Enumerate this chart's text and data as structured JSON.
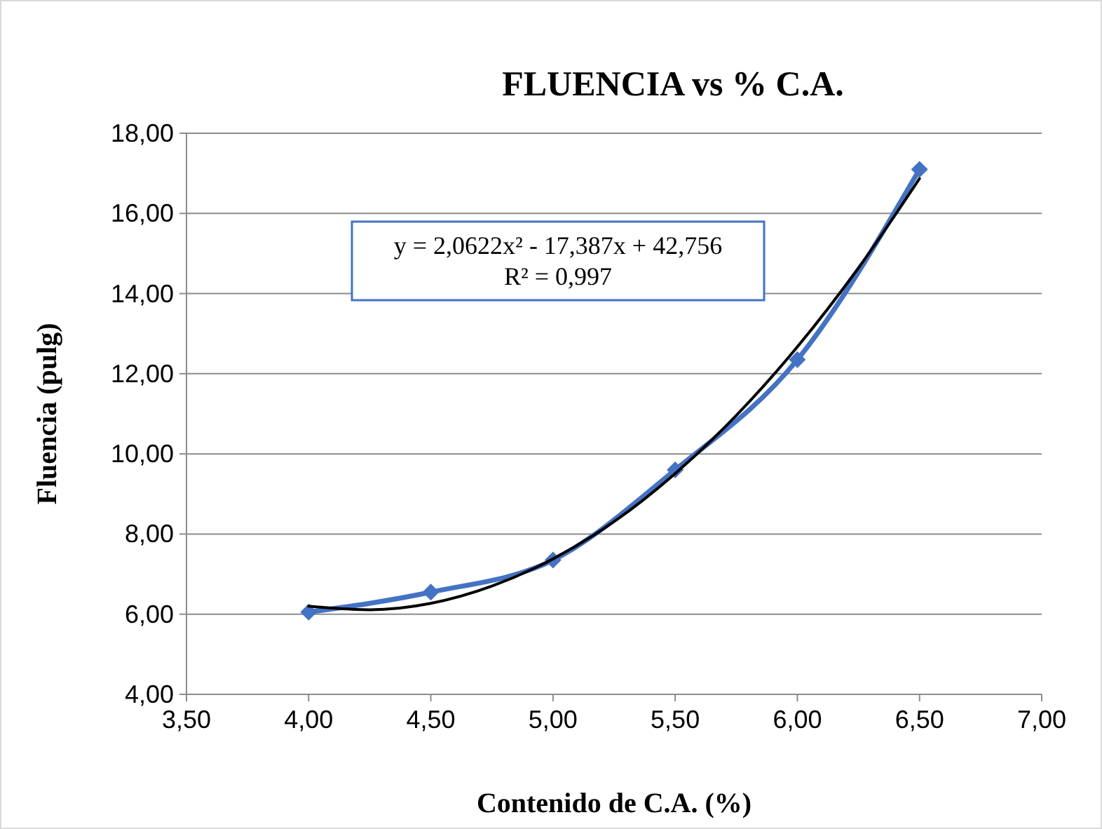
{
  "chart_data": {
    "type": "line",
    "title": "FLUENCIA vs % C.A.",
    "xlabel": "Contenido de C.A. (%)",
    "ylabel": "Fluencia (pulg)",
    "x": [
      4,
      4.5,
      5,
      5.5,
      6,
      6.5
    ],
    "series": [
      {
        "color": "#4472c4",
        "marker": "diamond",
        "values": [
          6.05,
          6.55,
          7.35,
          9.6,
          12.35,
          17.1
        ]
      },
      {
        "color": "#000000",
        "marker": "none",
        "x": [
          4,
          4.25,
          4.5,
          4.75,
          5,
          5.25,
          5.5,
          5.75,
          6,
          6.25,
          6.5
        ],
        "values": [
          6.2,
          6.11,
          6.27,
          6.7,
          7.38,
          8.31,
          9.51,
          10.96,
          12.67,
          14.64,
          16.87
        ]
      }
    ],
    "xlim": [
      3.5,
      7
    ],
    "xticks": [
      {
        "value": 3.5,
        "label": "3,50"
      },
      {
        "value": 4,
        "label": "4,00"
      },
      {
        "value": 4.5,
        "label": "4,50"
      },
      {
        "value": 5,
        "label": "5,00"
      },
      {
        "value": 5.5,
        "label": "5,50"
      },
      {
        "value": 6,
        "label": "6,00"
      },
      {
        "value": 6.5,
        "label": "6,50"
      },
      {
        "value": 7,
        "label": "7,00"
      }
    ],
    "ylim": [
      4,
      18
    ],
    "yticks": [
      {
        "value": 4,
        "label": "4,00"
      },
      {
        "value": 6,
        "label": "6,00"
      },
      {
        "value": 8,
        "label": "8,00"
      },
      {
        "value": 10,
        "label": "10,00"
      },
      {
        "value": 12,
        "label": "12,00"
      },
      {
        "value": 14,
        "label": "14,00"
      },
      {
        "value": 16,
        "label": "16,00"
      },
      {
        "value": 18,
        "label": "18,00"
      }
    ],
    "grid": "y",
    "annotations": [
      "y = 2,0622x² - 17,387x + 42,756",
      "R² = 0,997"
    ]
  }
}
